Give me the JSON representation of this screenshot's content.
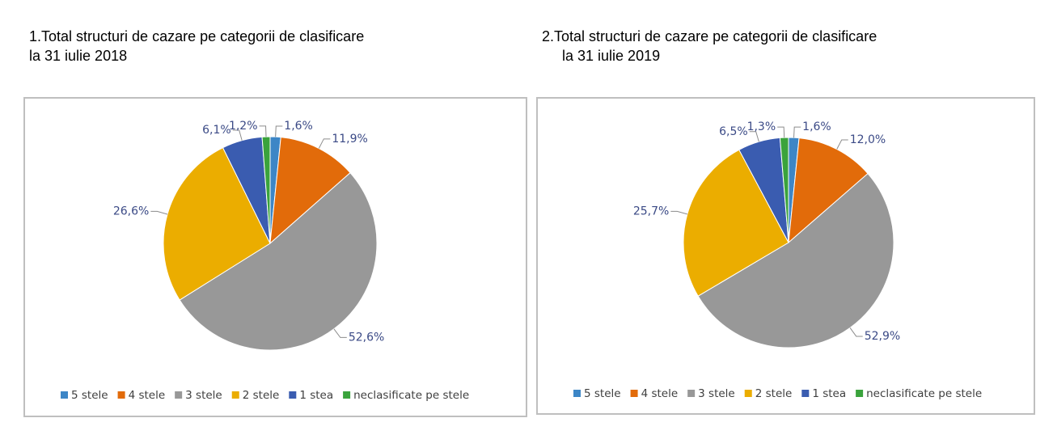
{
  "chart_data": [
    {
      "type": "pie",
      "title": [
        "1.Total structuri de cazare pe categorii de clasificare",
        "la 31 iulie 2018"
      ],
      "categories": [
        "5 stele",
        "4 stele",
        "3 stele",
        "2 stele",
        "1 stea",
        "neclasificate pe stele"
      ],
      "values": [
        1.6,
        11.9,
        52.6,
        26.6,
        6.1,
        1.2
      ],
      "value_labels": [
        "1,6%",
        "11,9%",
        "52,6%",
        "26,6%",
        "6,1%",
        "1,2%"
      ],
      "colors": [
        "#3d86c6",
        "#e26b0a",
        "#989898",
        "#ebad00",
        "#3a5cb0",
        "#3aa33c"
      ],
      "legend": "bottom"
    },
    {
      "type": "pie",
      "title": [
        "2.Total structuri de cazare pe categorii de clasificare",
        "la 31 iulie 2019"
      ],
      "categories": [
        "5 stele",
        "4 stele",
        "3 stele",
        "2 stele",
        "1 stea",
        "neclasificate pe stele"
      ],
      "values": [
        1.6,
        12.0,
        52.9,
        25.7,
        6.5,
        1.3
      ],
      "value_labels": [
        "1,6%",
        "12,0%",
        "52,9%",
        "25,7%",
        "6,5%",
        "1,3%"
      ],
      "colors": [
        "#3d86c6",
        "#e26b0a",
        "#989898",
        "#ebad00",
        "#3a5cb0",
        "#3aa33c"
      ],
      "legend": "bottom"
    }
  ]
}
